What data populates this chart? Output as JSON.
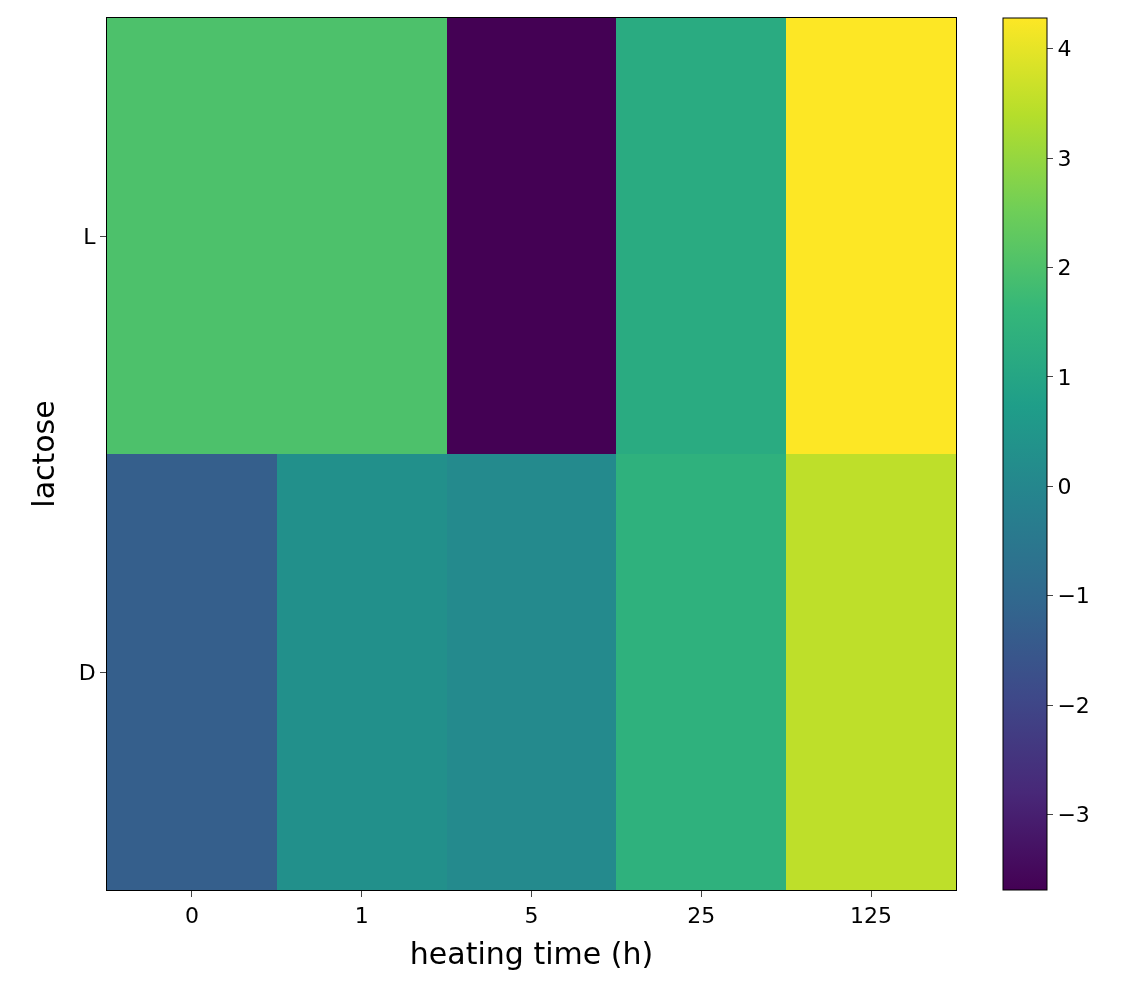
{
  "chart_data": {
    "type": "heatmap",
    "xlabel": "heating time (h)",
    "ylabel": "lactose",
    "categories": [
      "0",
      "1",
      "5",
      "25",
      "125"
    ],
    "y_categories": [
      "L",
      "D"
    ],
    "cells": [
      [
        2.0,
        2.0,
        -3.69,
        1.2,
        4.28
      ],
      [
        -1.3,
        0.3,
        0.1,
        1.4,
        3.5
      ]
    ],
    "clim": [
      -3.69,
      4.28
    ],
    "cticks": [
      {
        "value": -3,
        "label": "−3"
      },
      {
        "value": -2,
        "label": "−2"
      },
      {
        "value": -1,
        "label": "−1"
      },
      0,
      1,
      2,
      3,
      4
    ]
  }
}
